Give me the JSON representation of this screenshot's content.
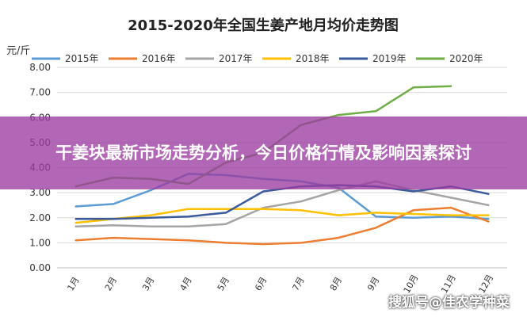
{
  "chart_data": {
    "type": "line",
    "title": "2015-2020年全国生姜产地月均价走势图",
    "ylabel": "元/斤",
    "xlabel": "",
    "ylim": [
      0,
      8
    ],
    "yticks": [
      "0.00",
      "1.00",
      "2.00",
      "3.00",
      "4.00",
      "5.00",
      "6.00",
      "7.00",
      "8.00"
    ],
    "categories": [
      "1月",
      "2月",
      "3月",
      "4月",
      "5月",
      "6月",
      "7月",
      "8月",
      "9月",
      "10月",
      "11月",
      "12月"
    ],
    "grid": true,
    "legend_position": "top",
    "series": [
      {
        "name": "2015年",
        "color": "#5b9bd5",
        "values": [
          2.45,
          2.55,
          3.1,
          3.75,
          3.7,
          3.55,
          3.45,
          3.2,
          2.05,
          2.0,
          2.05,
          1.95
        ]
      },
      {
        "name": "2016年",
        "color": "#ed7d31",
        "values": [
          1.1,
          1.2,
          1.15,
          1.1,
          1.0,
          0.95,
          1.0,
          1.2,
          1.6,
          2.3,
          2.4,
          1.85
        ]
      },
      {
        "name": "2017年",
        "color": "#a5a5a5",
        "values": [
          1.65,
          1.7,
          1.65,
          1.65,
          1.75,
          2.4,
          2.65,
          3.1,
          3.45,
          3.1,
          2.8,
          2.5
        ]
      },
      {
        "name": "2018年",
        "color": "#ffc000",
        "values": [
          1.8,
          1.95,
          2.1,
          2.35,
          2.35,
          2.35,
          2.3,
          2.1,
          2.2,
          2.15,
          2.1,
          2.1
        ]
      },
      {
        "name": "2019年",
        "color": "#3a5a9c",
        "values": [
          1.95,
          1.95,
          2.0,
          2.05,
          2.2,
          3.05,
          3.25,
          3.3,
          3.25,
          3.05,
          3.25,
          2.95
        ]
      },
      {
        "name": "2020年",
        "color": "#70ad47",
        "values": [
          3.25,
          3.6,
          3.55,
          3.35,
          4.2,
          4.6,
          5.7,
          6.1,
          6.25,
          7.2,
          7.25,
          null
        ]
      }
    ]
  },
  "banner": {
    "text": "干姜块最新市场走势分析，今日价格行情及影响因素探讨"
  },
  "watermark": {
    "text": "搜狐号@佳农学种菜"
  }
}
